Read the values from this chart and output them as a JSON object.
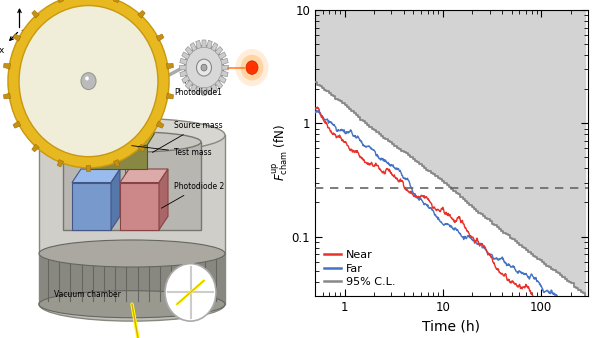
{
  "ylabel": "$F_{\\mathrm{cham}}^{\\mathrm{up}}$ (fN)",
  "xlabel": "Time (h)",
  "xlim": [
    0.5,
    300
  ],
  "ylim": [
    0.03,
    10
  ],
  "dashed_y": 0.27,
  "legend_labels": [
    "Near",
    "Far",
    "95% C.L."
  ],
  "line_colors": [
    "#e8312a",
    "#4472c4",
    "#888888"
  ],
  "near_start": 1.35,
  "far_start": 1.28,
  "cl_start": 2.3,
  "power_near": -0.73,
  "power_far": -0.74,
  "power_cl": -0.68
}
